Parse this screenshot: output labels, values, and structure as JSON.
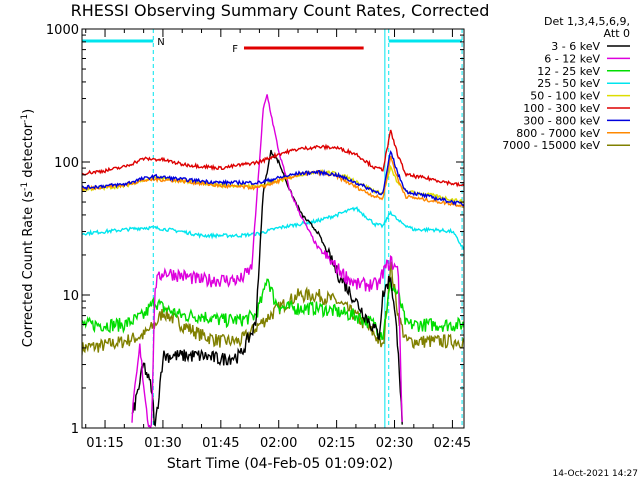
{
  "chart_data": {
    "type": "line",
    "title": "RHESSI Observing Summary Count Rates, Corrected",
    "xlabel": "Start Time (04-Feb-05 01:09:02)",
    "ylabel": "Corrected Count Rate (s",
    "ylabel_sup1": "-1",
    "ylabel_mid": " detector",
    "ylabel_sup2": "-1",
    "ylabel_end": ")",
    "y_scale": "log",
    "ylim": [
      1,
      1000
    ],
    "xlim": [
      "01:09:02",
      "02:48"
    ],
    "x_tick_labels": [
      "01:15",
      "01:30",
      "01:45",
      "02:00",
      "02:15",
      "02:30",
      "02:45"
    ],
    "y_tick_labels": [
      "1",
      "10",
      "100",
      "1000"
    ],
    "legend_title_lines": [
      "Det 1,3,4,5,6,9,",
      "Att 0"
    ],
    "legend_placement": "right",
    "timestamp": "14-Oct-2021 14:27",
    "flags": [
      {
        "label": "N",
        "color": "#00e5ee",
        "segments": [
          [
            "01:09:02",
            "01:27:30"
          ],
          [
            "02:28:30",
            "02:47:30"
          ]
        ]
      },
      {
        "label": "F",
        "color": "#e00000",
        "segments": [
          [
            "01:51:00",
            "02:22:00"
          ]
        ]
      }
    ],
    "markers": [
      {
        "time": "01:27:30",
        "style": "dashed",
        "color": "#00e5ee"
      },
      {
        "time": "02:27:30",
        "style": "solid",
        "color": "#00e5ee"
      },
      {
        "time": "02:28:30",
        "style": "dashed",
        "color": "#00e5ee"
      },
      {
        "time": "02:47:30",
        "style": "dashed",
        "color": "#00e5ee"
      }
    ],
    "series": [
      {
        "name": "3 - 6 keV",
        "color": "#000000",
        "x": [
          "01:22",
          "01:25",
          "01:27",
          "01:28",
          "01:30",
          "01:35",
          "01:40",
          "01:45",
          "01:50",
          "01:54",
          "01:56",
          "01:58",
          "02:00",
          "02:03",
          "02:06",
          "02:10",
          "02:15",
          "02:20",
          "02:24",
          "02:26",
          "02:27",
          "02:29",
          "02:31",
          "02:32"
        ],
        "y": [
          1.2,
          3,
          2,
          1,
          3.5,
          3.5,
          3.5,
          3.3,
          3.5,
          6,
          60,
          120,
          100,
          60,
          40,
          30,
          15,
          9,
          6,
          5,
          10,
          14,
          4,
          1.0
        ]
      },
      {
        "name": "6 - 12 keV",
        "color": "#dd00dd",
        "x": [
          "01:22",
          "01:24",
          "01:26",
          "01:27",
          "01:28",
          "01:30",
          "01:35",
          "01:40",
          "01:45",
          "01:50",
          "01:53",
          "01:56",
          "01:57",
          "01:58",
          "02:00",
          "02:03",
          "02:06",
          "02:10",
          "02:15",
          "02:20",
          "02:24",
          "02:26",
          "02:27",
          "02:29",
          "02:31",
          "02:32"
        ],
        "y": [
          1.2,
          4,
          1.2,
          1,
          12,
          15,
          14,
          13,
          13,
          13,
          16,
          250,
          320,
          230,
          120,
          60,
          38,
          23,
          16,
          12,
          12,
          12,
          15,
          18,
          15,
          1.0
        ]
      },
      {
        "name": "12 - 25 keV",
        "color": "#00dd00",
        "x": [
          "01:09",
          "01:20",
          "01:25",
          "01:28",
          "01:30",
          "01:35",
          "01:40",
          "01:45",
          "01:50",
          "01:54",
          "01:56",
          "01:57",
          "01:59",
          "02:01",
          "02:05",
          "02:10",
          "02:15",
          "02:20",
          "02:25",
          "02:27",
          "02:28",
          "02:29",
          "02:31",
          "02:33",
          "02:35",
          "02:45",
          "02:48"
        ],
        "y": [
          6,
          6,
          7,
          9,
          8,
          7,
          7,
          6.5,
          6.5,
          7,
          10,
          14,
          9,
          8,
          8,
          8,
          7.5,
          7,
          6,
          5,
          8,
          12,
          10,
          6,
          6,
          6,
          6
        ]
      },
      {
        "name": "25 - 50 keV",
        "color": "#00e5ee",
        "x": [
          "01:09",
          "01:15",
          "01:20",
          "01:25",
          "01:28",
          "01:35",
          "01:40",
          "01:45",
          "01:50",
          "01:55",
          "02:00",
          "02:05",
          "02:10",
          "02:15",
          "02:20",
          "02:25",
          "02:27",
          "02:29",
          "02:31",
          "02:35",
          "02:40",
          "02:45",
          "02:48"
        ],
        "y": [
          29,
          30,
          31,
          32,
          32,
          30,
          28,
          28,
          28,
          29,
          32,
          34,
          36,
          40,
          45,
          34,
          33,
          42,
          36,
          31,
          31,
          30,
          22
        ]
      },
      {
        "name": "50 - 100 keV",
        "color": "#dddd00",
        "x": [
          "01:09",
          "01:20",
          "01:24",
          "01:28",
          "01:35",
          "01:45",
          "01:55",
          "02:00",
          "02:05",
          "02:10",
          "02:15",
          "02:20",
          "02:25",
          "02:27",
          "02:29",
          "02:31",
          "02:33",
          "02:40",
          "02:48"
        ],
        "y": [
          62,
          66,
          72,
          76,
          72,
          67,
          66,
          72,
          80,
          85,
          82,
          72,
          60,
          58,
          90,
          68,
          60,
          56,
          50
        ]
      },
      {
        "name": "100 - 300 keV",
        "color": "#dd0000",
        "x": [
          "01:09",
          "01:15",
          "01:20",
          "01:25",
          "01:30",
          "01:35",
          "01:45",
          "01:55",
          "02:00",
          "02:05",
          "02:10",
          "02:15",
          "02:20",
          "02:25",
          "02:27",
          "02:29",
          "02:31",
          "02:33",
          "02:40",
          "02:48"
        ],
        "y": [
          82,
          86,
          92,
          106,
          104,
          96,
          90,
          100,
          115,
          125,
          130,
          128,
          115,
          90,
          88,
          170,
          110,
          80,
          74,
          66
        ]
      },
      {
        "name": "300 - 800 keV",
        "color": "#0000dd",
        "x": [
          "01:09",
          "01:20",
          "01:24",
          "01:28",
          "01:35",
          "01:45",
          "01:55",
          "02:00",
          "02:05",
          "02:10",
          "02:15",
          "02:20",
          "02:25",
          "02:27",
          "02:29",
          "02:31",
          "02:33",
          "02:40",
          "02:48"
        ],
        "y": [
          64,
          68,
          74,
          78,
          74,
          70,
          70,
          76,
          82,
          84,
          80,
          70,
          60,
          58,
          120,
          80,
          60,
          54,
          48
        ]
      },
      {
        "name": "800 - 7000 keV",
        "color": "#ff8800",
        "x": [
          "01:09",
          "01:20",
          "01:24",
          "01:28",
          "01:35",
          "01:45",
          "01:55",
          "02:00",
          "02:05",
          "02:10",
          "02:15",
          "02:20",
          "02:25",
          "02:27",
          "02:29",
          "02:31",
          "02:33",
          "02:40",
          "02:48"
        ],
        "y": [
          63,
          67,
          72,
          74,
          72,
          66,
          64,
          72,
          80,
          84,
          78,
          65,
          55,
          53,
          110,
          72,
          55,
          51,
          47
        ]
      },
      {
        "name": "7000 - 15000 keV",
        "color": "#808000",
        "x": [
          "01:09",
          "01:15",
          "01:20",
          "01:25",
          "01:28",
          "01:30",
          "01:35",
          "01:40",
          "01:45",
          "01:50",
          "01:55",
          "02:00",
          "02:05",
          "02:10",
          "02:15",
          "02:20",
          "02:25",
          "02:27",
          "02:29",
          "02:31",
          "02:33",
          "02:40",
          "02:48"
        ],
        "y": [
          4,
          4.2,
          4.5,
          5,
          6,
          7.5,
          6,
          5,
          4.5,
          4.5,
          6,
          8,
          10,
          10,
          9,
          7,
          5,
          4,
          17,
          7,
          4.5,
          4.5,
          4.5
        ]
      }
    ]
  }
}
